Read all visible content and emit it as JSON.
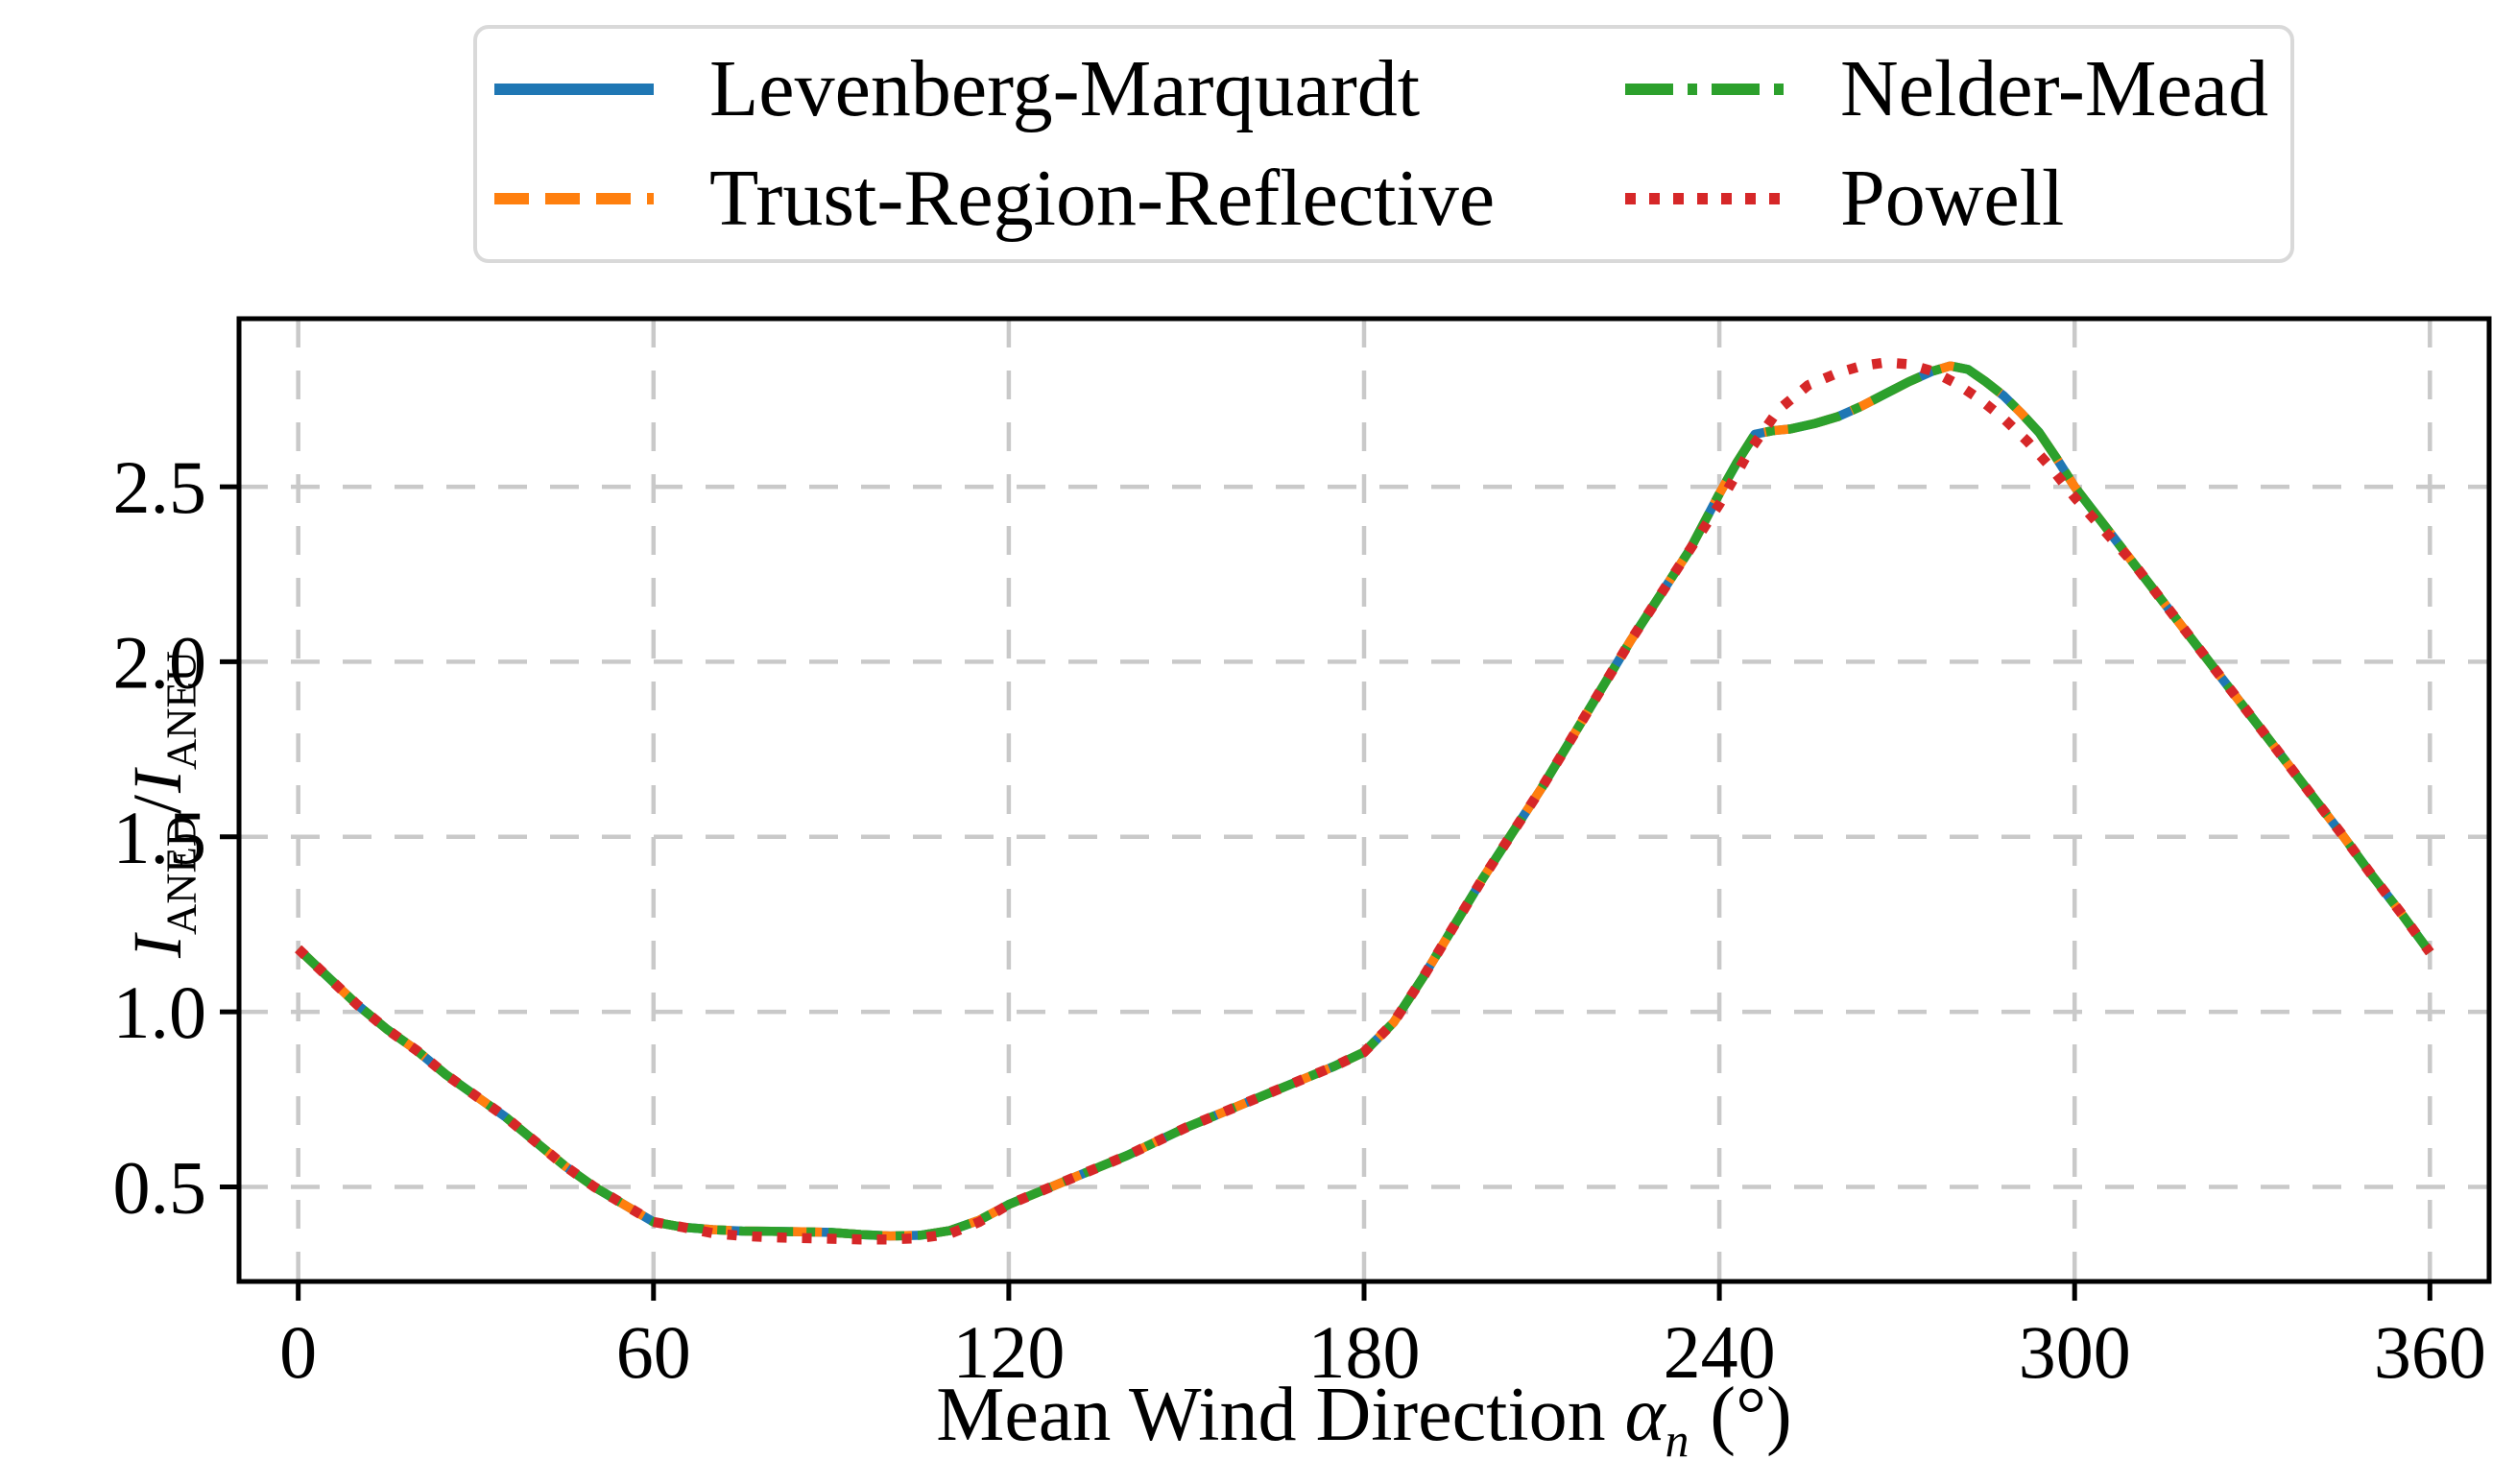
{
  "figure": {
    "background": "#ffffff"
  },
  "x_axis_label": {
    "text": "Mean Wind Direction",
    "symbol": "α",
    "symbol_sub": "n",
    "unit": "(°)"
  },
  "y_axis_label": {
    "numerator": "I",
    "numerator_sub": "ANED",
    "separator": "/",
    "denominator": "I",
    "denominator_sub": "ANEU"
  },
  "chart_data": {
    "type": "line",
    "title": "",
    "xlabel": "Mean Wind Direction α_n (°)",
    "ylabel": "I_ANED / I_ANEU",
    "xlim": [
      -10,
      370
    ],
    "ylim": [
      0.23,
      2.98
    ],
    "x_ticks": [
      0,
      60,
      120,
      180,
      240,
      300,
      360
    ],
    "x_tick_labels": [
      "0",
      "60",
      "120",
      "180",
      "240",
      "300",
      "360"
    ],
    "y_ticks": [
      0.5,
      1.0,
      1.5,
      2.0,
      2.5
    ],
    "y_tick_labels": [
      "0.5",
      "1.0",
      "1.5",
      "2.0",
      "2.5"
    ],
    "grid": true,
    "grid_color": "#c9c9c9",
    "legend": {
      "position": "upper center",
      "columns": 2,
      "border_color": "#d9d9d9"
    },
    "series": [
      {
        "name": "Levenberg-Marquardt",
        "color": "#1f77b4",
        "style": "solid",
        "x": [
          0,
          5,
          10,
          15,
          20,
          25,
          30,
          35,
          40,
          45,
          50,
          55,
          60,
          65,
          70,
          75,
          80,
          85,
          90,
          95,
          100,
          105,
          110,
          115,
          120,
          125,
          130,
          135,
          140,
          145,
          150,
          155,
          160,
          165,
          170,
          175,
          180,
          185,
          190,
          195,
          200,
          205,
          210,
          215,
          220,
          225,
          230,
          235,
          240,
          243,
          246,
          249,
          252,
          256,
          260,
          264,
          268,
          272,
          276,
          279,
          282,
          285,
          288,
          291,
          294,
          297,
          300,
          305,
          310,
          315,
          320,
          325,
          330,
          335,
          340,
          345,
          350,
          355,
          360
        ],
        "y": [
          1.18,
          1.1,
          1.02,
          0.95,
          0.89,
          0.82,
          0.76,
          0.7,
          0.63,
          0.56,
          0.5,
          0.45,
          0.4,
          0.385,
          0.378,
          0.374,
          0.373,
          0.372,
          0.37,
          0.364,
          0.36,
          0.362,
          0.375,
          0.405,
          0.45,
          0.485,
          0.52,
          0.555,
          0.59,
          0.63,
          0.67,
          0.705,
          0.74,
          0.775,
          0.81,
          0.845,
          0.885,
          0.97,
          1.1,
          1.24,
          1.38,
          1.51,
          1.64,
          1.78,
          1.92,
          2.06,
          2.19,
          2.32,
          2.48,
          2.57,
          2.65,
          2.66,
          2.665,
          2.68,
          2.7,
          2.73,
          2.765,
          2.8,
          2.83,
          2.845,
          2.835,
          2.8,
          2.76,
          2.71,
          2.655,
          2.58,
          2.5,
          2.39,
          2.28,
          2.17,
          2.06,
          1.95,
          1.84,
          1.73,
          1.62,
          1.51,
          1.395,
          1.285,
          1.17
        ]
      },
      {
        "name": "Trust-Region-Reflective",
        "color": "#ff7f0e",
        "style": "dashed",
        "x": [
          0,
          5,
          10,
          15,
          20,
          25,
          30,
          35,
          40,
          45,
          50,
          55,
          60,
          65,
          70,
          75,
          80,
          85,
          90,
          95,
          100,
          105,
          110,
          115,
          120,
          125,
          130,
          135,
          140,
          145,
          150,
          155,
          160,
          165,
          170,
          175,
          180,
          185,
          190,
          195,
          200,
          205,
          210,
          215,
          220,
          225,
          230,
          235,
          240,
          243,
          246,
          249,
          252,
          256,
          260,
          264,
          268,
          272,
          276,
          279,
          282,
          285,
          288,
          291,
          294,
          297,
          300,
          305,
          310,
          315,
          320,
          325,
          330,
          335,
          340,
          345,
          350,
          355,
          360
        ],
        "y": [
          1.18,
          1.1,
          1.02,
          0.95,
          0.89,
          0.82,
          0.76,
          0.7,
          0.63,
          0.56,
          0.5,
          0.45,
          0.4,
          0.385,
          0.378,
          0.374,
          0.373,
          0.372,
          0.37,
          0.364,
          0.36,
          0.362,
          0.375,
          0.405,
          0.45,
          0.485,
          0.52,
          0.555,
          0.59,
          0.63,
          0.67,
          0.705,
          0.74,
          0.775,
          0.81,
          0.845,
          0.885,
          0.97,
          1.1,
          1.24,
          1.38,
          1.51,
          1.64,
          1.78,
          1.92,
          2.06,
          2.19,
          2.32,
          2.48,
          2.57,
          2.65,
          2.66,
          2.665,
          2.68,
          2.7,
          2.73,
          2.765,
          2.8,
          2.83,
          2.845,
          2.835,
          2.8,
          2.76,
          2.71,
          2.655,
          2.58,
          2.5,
          2.39,
          2.28,
          2.17,
          2.06,
          1.95,
          1.84,
          1.73,
          1.62,
          1.51,
          1.395,
          1.285,
          1.17
        ]
      },
      {
        "name": "Nelder-Mead",
        "color": "#2ca02c",
        "style": "dashdot",
        "x": [
          0,
          5,
          10,
          15,
          20,
          25,
          30,
          35,
          40,
          45,
          50,
          55,
          60,
          65,
          70,
          75,
          80,
          85,
          90,
          95,
          100,
          105,
          110,
          115,
          120,
          125,
          130,
          135,
          140,
          145,
          150,
          155,
          160,
          165,
          170,
          175,
          180,
          185,
          190,
          195,
          200,
          205,
          210,
          215,
          220,
          225,
          230,
          235,
          240,
          243,
          246,
          249,
          252,
          256,
          260,
          264,
          268,
          272,
          276,
          279,
          282,
          285,
          288,
          291,
          294,
          297,
          300,
          305,
          310,
          315,
          320,
          325,
          330,
          335,
          340,
          345,
          350,
          355,
          360
        ],
        "y": [
          1.18,
          1.1,
          1.02,
          0.95,
          0.89,
          0.82,
          0.76,
          0.7,
          0.63,
          0.56,
          0.5,
          0.45,
          0.4,
          0.385,
          0.378,
          0.374,
          0.373,
          0.372,
          0.37,
          0.364,
          0.36,
          0.362,
          0.375,
          0.405,
          0.45,
          0.485,
          0.52,
          0.555,
          0.59,
          0.63,
          0.67,
          0.705,
          0.74,
          0.775,
          0.81,
          0.845,
          0.885,
          0.97,
          1.1,
          1.24,
          1.38,
          1.51,
          1.64,
          1.78,
          1.92,
          2.06,
          2.19,
          2.32,
          2.48,
          2.57,
          2.65,
          2.66,
          2.665,
          2.68,
          2.7,
          2.73,
          2.765,
          2.8,
          2.83,
          2.845,
          2.835,
          2.8,
          2.76,
          2.71,
          2.655,
          2.58,
          2.5,
          2.39,
          2.28,
          2.17,
          2.06,
          1.95,
          1.84,
          1.73,
          1.62,
          1.51,
          1.395,
          1.285,
          1.17
        ]
      },
      {
        "name": "Powell",
        "color": "#d62728",
        "style": "dotted",
        "x": [
          0,
          5,
          10,
          15,
          20,
          25,
          30,
          35,
          40,
          45,
          50,
          55,
          60,
          65,
          70,
          75,
          80,
          85,
          90,
          95,
          100,
          105,
          110,
          115,
          120,
          125,
          130,
          135,
          140,
          145,
          150,
          155,
          160,
          165,
          170,
          175,
          180,
          185,
          190,
          195,
          200,
          205,
          210,
          215,
          220,
          225,
          230,
          235,
          240,
          245,
          250,
          255,
          260,
          264,
          268,
          272,
          276,
          280,
          284,
          288,
          292,
          296,
          300,
          305,
          310,
          315,
          320,
          325,
          330,
          335,
          340,
          345,
          350,
          355,
          360
        ],
        "y": [
          1.18,
          1.1,
          1.02,
          0.95,
          0.89,
          0.82,
          0.76,
          0.7,
          0.63,
          0.56,
          0.5,
          0.45,
          0.4,
          0.385,
          0.368,
          0.36,
          0.356,
          0.354,
          0.352,
          0.35,
          0.35,
          0.354,
          0.366,
          0.4,
          0.45,
          0.485,
          0.52,
          0.555,
          0.59,
          0.63,
          0.67,
          0.705,
          0.74,
          0.775,
          0.81,
          0.845,
          0.885,
          0.97,
          1.1,
          1.24,
          1.38,
          1.51,
          1.64,
          1.78,
          1.92,
          2.06,
          2.19,
          2.32,
          2.45,
          2.6,
          2.72,
          2.79,
          2.825,
          2.845,
          2.855,
          2.85,
          2.83,
          2.795,
          2.75,
          2.695,
          2.63,
          2.555,
          2.47,
          2.375,
          2.28,
          2.17,
          2.06,
          1.95,
          1.84,
          1.73,
          1.62,
          1.51,
          1.395,
          1.285,
          1.17
        ]
      }
    ]
  }
}
